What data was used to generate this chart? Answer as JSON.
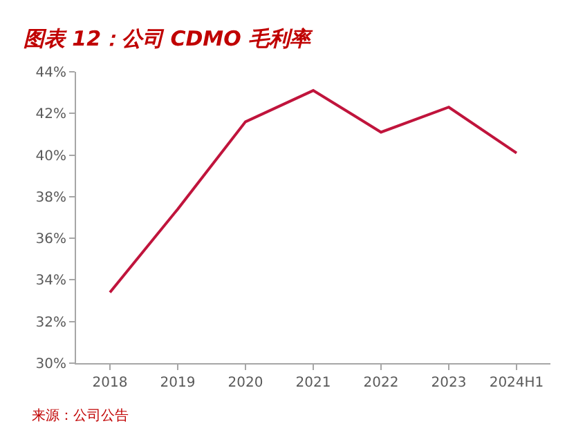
{
  "chart_data": {
    "type": "line",
    "title": "图表 12：公司 CDMO 毛利率",
    "categories": [
      "2018",
      "2019",
      "2020",
      "2021",
      "2022",
      "2023",
      "2024H1"
    ],
    "series": [
      {
        "color": "#c0143c",
        "values": [
          33.4,
          37.4,
          41.6,
          43.1,
          41.1,
          42.3,
          40.1
        ]
      }
    ],
    "ylim": [
      30,
      44
    ],
    "yticks": [
      {
        "value": 30,
        "label": "30%"
      },
      {
        "value": 32,
        "label": "32%"
      },
      {
        "value": 34,
        "label": "34%"
      },
      {
        "value": 36,
        "label": "36%"
      },
      {
        "value": 38,
        "label": "38%"
      },
      {
        "value": 40,
        "label": "40%"
      },
      {
        "value": 42,
        "label": "42%"
      },
      {
        "value": 44,
        "label": "44%"
      }
    ],
    "grid": false,
    "marker": "none",
    "line_style": "solid",
    "annotations": [
      "来源：公司公告"
    ]
  }
}
